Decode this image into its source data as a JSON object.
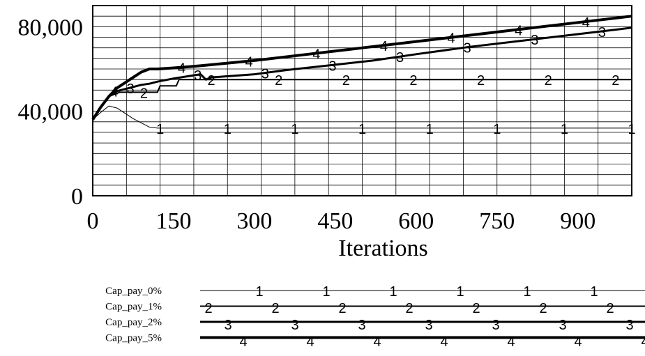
{
  "chart_data": {
    "type": "line",
    "xlabel": "Iterations",
    "ylabel": "",
    "xlim": [
      0,
      1000
    ],
    "ylim": [
      0,
      90000
    ],
    "x_ticks": [
      0,
      150,
      300,
      450,
      600,
      750,
      900
    ],
    "x_tick_labels": [
      "0",
      "150",
      "300",
      "450",
      "600",
      "750",
      "900"
    ],
    "y_ticks": [
      0,
      40000,
      80000
    ],
    "y_tick_labels": [
      "0",
      "40,000",
      "80,000"
    ],
    "grid": true,
    "legend_placement": "bottom",
    "series": [
      {
        "name": "Cap_pay_0%",
        "marker": "1",
        "stroke_width": 1,
        "x": [
          0,
          15,
          30,
          45,
          60,
          75,
          90,
          105,
          120,
          1000
        ],
        "y": [
          36000,
          39500,
          42500,
          41500,
          39000,
          36500,
          34500,
          32500,
          32000,
          32000
        ]
      },
      {
        "name": "Cap_pay_1%",
        "marker": "2",
        "stroke_width": 2,
        "x": [
          0,
          10,
          20,
          30,
          40,
          50,
          120,
          125,
          155,
          160,
          1000
        ],
        "y": [
          36000,
          40000,
          44000,
          47000,
          48000,
          49000,
          49000,
          52000,
          52000,
          55000,
          55000
        ]
      },
      {
        "name": "Cap_pay_2%",
        "marker": "3",
        "stroke_width": 3,
        "x": [
          0,
          15,
          30,
          45,
          60,
          75,
          90,
          105,
          120,
          150,
          200,
          210,
          220,
          300,
          360,
          450,
          520,
          600,
          700,
          800,
          900,
          1000
        ],
        "y": [
          36000,
          42000,
          47000,
          49500,
          50500,
          51500,
          52500,
          53000,
          54000,
          55500,
          57500,
          55000,
          56000,
          57500,
          59500,
          62000,
          64000,
          67000,
          70500,
          73500,
          76500,
          79500
        ]
      },
      {
        "name": "Cap_pay_5%",
        "marker": "4",
        "stroke_width": 4,
        "x": [
          0,
          15,
          30,
          45,
          60,
          75,
          90,
          105,
          120,
          150,
          200,
          300,
          400,
          500,
          600,
          700,
          800,
          900,
          1000
        ],
        "y": [
          36000,
          42000,
          47000,
          51000,
          53500,
          56000,
          58500,
          60000,
          60000,
          60500,
          61500,
          64000,
          67000,
          70000,
          73000,
          76000,
          79000,
          82000,
          85000
        ]
      }
    ]
  }
}
